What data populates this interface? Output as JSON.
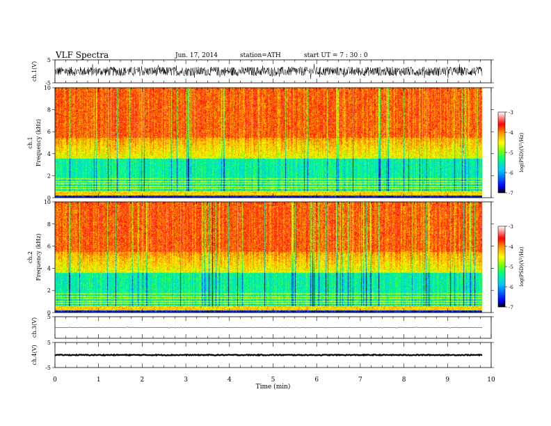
{
  "header": {
    "title": "VLF  Spectra",
    "date": "Jun. 17, 2014",
    "station": "station=ATH",
    "start": "start  UT  =   7  : 30 : 0"
  },
  "chart_data": [
    {
      "type": "line",
      "ylabel": "ch.1(V)",
      "ylim": [
        -5,
        5
      ],
      "yticks": [
        "5",
        "-5"
      ],
      "signal": "broadband noise roughly between -2 and 2 V"
    },
    {
      "type": "heatmap",
      "ylabel": "ch.1  Frequency  (kHz)",
      "ylim": [
        0,
        10
      ],
      "yticks": [
        "0",
        "2",
        "4",
        "6",
        "8",
        "10"
      ],
      "colorbar": {
        "label": "log(PSD)(V²/Hz)",
        "range": [
          -7,
          -3
        ],
        "ticks": [
          "-3",
          "-4",
          "-5",
          "-6",
          "-7"
        ],
        "colors": [
          "#000000",
          "#0000ff",
          "#00c8ff",
          "#00ff80",
          "#7fff00",
          "#ffff00",
          "#ff9900",
          "#ff0000",
          "#ffffff"
        ]
      }
    },
    {
      "type": "heatmap",
      "ylabel": "ch.2  Frequency  (kHz)",
      "ylim": [
        0,
        10
      ],
      "yticks": [
        "0",
        "2",
        "4",
        "6",
        "8",
        "10"
      ],
      "colorbar": {
        "label": "log(PSD)(V²/Hz)",
        "range": [
          -7,
          -3
        ],
        "ticks": [
          "-3",
          "-4",
          "-5",
          "-6",
          "-7"
        ]
      }
    },
    {
      "type": "line",
      "ylabel": "ch.3(V)",
      "ylim": [
        -5,
        5
      ],
      "yticks": [
        "5"
      ],
      "signal": "flat, approximately 0 V"
    },
    {
      "type": "line",
      "ylabel": "ch.4(V)",
      "ylim": [
        -5,
        5
      ],
      "yticks": [
        "5",
        "-5"
      ],
      "signal": "flat, approximately 0 V"
    }
  ],
  "xaxis": {
    "label": "Time  (min)",
    "range": [
      0,
      10
    ],
    "ticks": [
      "0",
      "1",
      "2",
      "3",
      "4",
      "5",
      "6",
      "7",
      "8",
      "9",
      "10"
    ],
    "data_end": 9.8
  }
}
